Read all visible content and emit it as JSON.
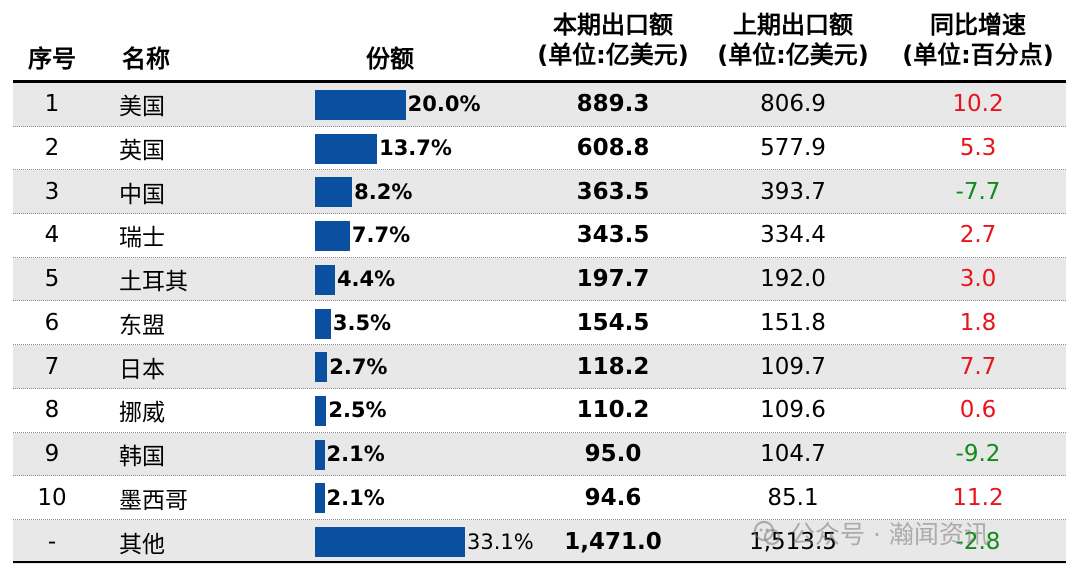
{
  "headers": {
    "no": "序号",
    "name": "名称",
    "share": "份额",
    "cur_l1": "本期出口额",
    "cur_l2": "(单位:亿美元)",
    "prev_l1": "上期出口额",
    "prev_l2": "(单位:亿美元)",
    "yoy_l1": "同比增速",
    "yoy_l2": "(单位:百分点)"
  },
  "colors": {
    "bar": "#0b4fa0",
    "positive": "#e8141c",
    "negative": "#138a1c",
    "shade": "#e8e8e8"
  },
  "chart_data": {
    "type": "table",
    "columns": [
      "序号",
      "名称",
      "份额",
      "本期出口额(单位:亿美元)",
      "上期出口额(单位:亿美元)",
      "同比增速(单位:百分点)"
    ],
    "rows": [
      {
        "no": "1",
        "name": "美国",
        "share": 20.0,
        "share_label": "20.0%",
        "current": "889.3",
        "previous": "806.9",
        "yoy": "10.2",
        "yoy_sign": "pos"
      },
      {
        "no": "2",
        "name": "英国",
        "share": 13.7,
        "share_label": "13.7%",
        "current": "608.8",
        "previous": "577.9",
        "yoy": "5.3",
        "yoy_sign": "pos"
      },
      {
        "no": "3",
        "name": "中国",
        "share": 8.2,
        "share_label": "8.2%",
        "current": "363.5",
        "previous": "393.7",
        "yoy": "-7.7",
        "yoy_sign": "neg"
      },
      {
        "no": "4",
        "name": "瑞士",
        "share": 7.7,
        "share_label": "7.7%",
        "current": "343.5",
        "previous": "334.4",
        "yoy": "2.7",
        "yoy_sign": "pos"
      },
      {
        "no": "5",
        "name": "土耳其",
        "share": 4.4,
        "share_label": "4.4%",
        "current": "197.7",
        "previous": "192.0",
        "yoy": "3.0",
        "yoy_sign": "pos"
      },
      {
        "no": "6",
        "name": "东盟",
        "share": 3.5,
        "share_label": "3.5%",
        "current": "154.5",
        "previous": "151.8",
        "yoy": "1.8",
        "yoy_sign": "pos"
      },
      {
        "no": "7",
        "name": "日本",
        "share": 2.7,
        "share_label": "2.7%",
        "current": "118.2",
        "previous": "109.7",
        "yoy": "7.7",
        "yoy_sign": "pos"
      },
      {
        "no": "8",
        "name": "挪威",
        "share": 2.5,
        "share_label": "2.5%",
        "current": "110.2",
        "previous": "109.6",
        "yoy": "0.6",
        "yoy_sign": "pos"
      },
      {
        "no": "9",
        "name": "韩国",
        "share": 2.1,
        "share_label": "2.1%",
        "current": "95.0",
        "previous": "104.7",
        "yoy": "-9.2",
        "yoy_sign": "neg"
      },
      {
        "no": "10",
        "name": "墨西哥",
        "share": 2.1,
        "share_label": "2.1%",
        "current": "94.6",
        "previous": "85.1",
        "yoy": "11.2",
        "yoy_sign": "pos"
      },
      {
        "no": "-",
        "name": "其他",
        "share": 33.1,
        "share_label": "33.1%",
        "current": "1,471.0",
        "previous": "1,513.5",
        "yoy": "-2.8",
        "yoy_sign": "neg"
      }
    ]
  },
  "watermark": {
    "text": "公众号 · 瀚闻资讯"
  }
}
